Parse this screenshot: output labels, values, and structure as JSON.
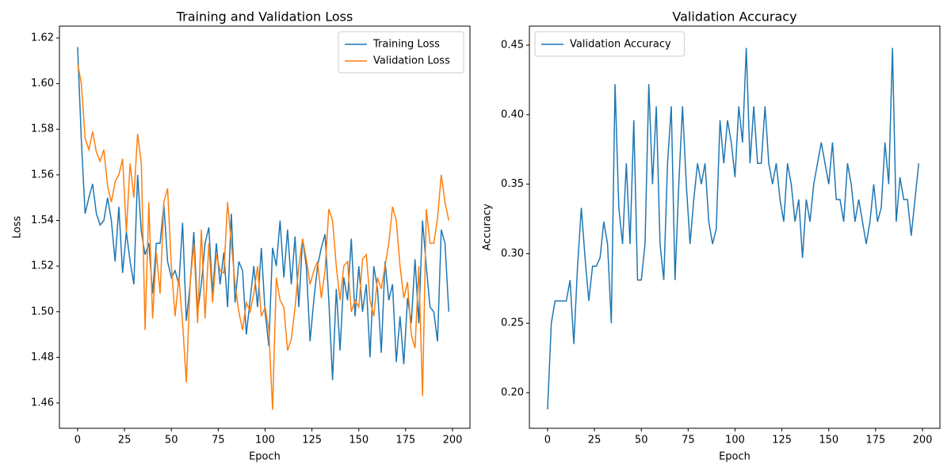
{
  "chart_data": [
    {
      "type": "line",
      "title": "Training and Validation Loss",
      "xlabel": "Epoch",
      "ylabel": "Loss",
      "x": [
        0,
        2,
        4,
        6,
        8,
        10,
        12,
        14,
        16,
        18,
        20,
        22,
        24,
        26,
        28,
        30,
        32,
        34,
        36,
        38,
        40,
        42,
        44,
        46,
        48,
        50,
        52,
        54,
        56,
        58,
        60,
        62,
        64,
        66,
        68,
        70,
        72,
        74,
        76,
        78,
        80,
        82,
        84,
        86,
        88,
        90,
        92,
        94,
        96,
        98,
        100,
        102,
        104,
        106,
        108,
        110,
        112,
        114,
        116,
        118,
        120,
        122,
        124,
        126,
        128,
        130,
        132,
        134,
        136,
        138,
        140,
        142,
        144,
        146,
        148,
        150,
        152,
        154,
        156,
        158,
        160,
        162,
        164,
        166,
        168,
        170,
        172,
        174,
        176,
        178,
        180,
        182,
        184,
        186,
        188,
        190,
        192,
        194,
        196,
        198
      ],
      "series": [
        {
          "name": "Training Loss",
          "color": "#1f77b4",
          "values": [
            1.616,
            1.575,
            1.543,
            1.55,
            1.556,
            1.543,
            1.538,
            1.54,
            1.55,
            1.54,
            1.522,
            1.546,
            1.517,
            1.535,
            1.522,
            1.512,
            1.56,
            1.535,
            1.525,
            1.53,
            1.508,
            1.53,
            1.53,
            1.547,
            1.522,
            1.515,
            1.518,
            1.512,
            1.539,
            1.496,
            1.512,
            1.535,
            1.5,
            1.512,
            1.53,
            1.537,
            1.508,
            1.53,
            1.512,
            1.526,
            1.502,
            1.543,
            1.504,
            1.522,
            1.518,
            1.49,
            1.505,
            1.52,
            1.502,
            1.528,
            1.5,
            1.485,
            1.528,
            1.52,
            1.54,
            1.515,
            1.536,
            1.512,
            1.533,
            1.502,
            1.532,
            1.52,
            1.487,
            1.505,
            1.52,
            1.528,
            1.534,
            1.505,
            1.47,
            1.51,
            1.483,
            1.515,
            1.505,
            1.532,
            1.498,
            1.52,
            1.5,
            1.512,
            1.48,
            1.52,
            1.51,
            1.482,
            1.522,
            1.505,
            1.512,
            1.478,
            1.498,
            1.477,
            1.506,
            1.495,
            1.523,
            1.495,
            1.54,
            1.52,
            1.502,
            1.5,
            1.487,
            1.536,
            1.53,
            1.5
          ]
        },
        {
          "name": "Validation Loss",
          "color": "#ff7f0e",
          "values": [
            1.609,
            1.6,
            1.576,
            1.571,
            1.579,
            1.57,
            1.566,
            1.571,
            1.555,
            1.548,
            1.557,
            1.56,
            1.567,
            1.535,
            1.565,
            1.55,
            1.578,
            1.565,
            1.492,
            1.548,
            1.497,
            1.526,
            1.508,
            1.548,
            1.554,
            1.52,
            1.498,
            1.515,
            1.495,
            1.469,
            1.512,
            1.53,
            1.495,
            1.536,
            1.497,
            1.53,
            1.504,
            1.525,
            1.518,
            1.517,
            1.548,
            1.53,
            1.512,
            1.5,
            1.492,
            1.504,
            1.5,
            1.508,
            1.52,
            1.498,
            1.502,
            1.492,
            1.457,
            1.515,
            1.505,
            1.502,
            1.483,
            1.488,
            1.502,
            1.52,
            1.532,
            1.523,
            1.512,
            1.518,
            1.522,
            1.506,
            1.518,
            1.545,
            1.54,
            1.52,
            1.505,
            1.52,
            1.522,
            1.5,
            1.505,
            1.502,
            1.523,
            1.525,
            1.505,
            1.498,
            1.515,
            1.51,
            1.52,
            1.53,
            1.546,
            1.54,
            1.52,
            1.506,
            1.513,
            1.49,
            1.484,
            1.52,
            1.463,
            1.545,
            1.53,
            1.53,
            1.541,
            1.56,
            1.548,
            1.54
          ]
        }
      ],
      "xlim": [
        -9.7,
        209.3
      ],
      "ylim": [
        1.4489,
        1.6252
      ],
      "xticks": [
        0,
        25,
        50,
        75,
        100,
        125,
        150,
        175,
        200
      ],
      "yticks": [
        1.46,
        1.48,
        {
          "value": 1.5,
          "label": "1.50"
        },
        1.52,
        1.54,
        1.56,
        1.58,
        {
          "value": 1.6,
          "label": "1.60"
        },
        1.62
      ],
      "legend": "upper right"
    },
    {
      "type": "line",
      "title": "Validation Accuracy",
      "xlabel": "Epoch",
      "ylabel": "Accuracy",
      "x": [
        0,
        2,
        4,
        6,
        8,
        10,
        12,
        14,
        16,
        18,
        20,
        22,
        24,
        26,
        28,
        30,
        32,
        34,
        36,
        38,
        40,
        42,
        44,
        46,
        48,
        50,
        52,
        54,
        56,
        58,
        60,
        62,
        64,
        66,
        68,
        70,
        72,
        74,
        76,
        78,
        80,
        82,
        84,
        86,
        88,
        90,
        92,
        94,
        96,
        98,
        100,
        102,
        104,
        106,
        108,
        110,
        112,
        114,
        116,
        118,
        120,
        122,
        124,
        126,
        128,
        130,
        132,
        134,
        136,
        138,
        140,
        142,
        144,
        146,
        148,
        150,
        152,
        154,
        156,
        158,
        160,
        162,
        164,
        166,
        168,
        170,
        172,
        174,
        176,
        178,
        180,
        182,
        184,
        186,
        188,
        190,
        192,
        194,
        196,
        198
      ],
      "series": [
        {
          "name": "Validation Accuracy",
          "color": "#1f77b4",
          "values": [
            0.188,
            0.25,
            0.266,
            0.266,
            0.266,
            0.266,
            0.281,
            0.235,
            0.291,
            0.333,
            0.297,
            0.266,
            0.291,
            0.291,
            0.297,
            0.323,
            0.307,
            0.25,
            0.422,
            0.333,
            0.307,
            0.365,
            0.307,
            0.396,
            0.281,
            0.281,
            0.307,
            0.422,
            0.35,
            0.406,
            0.307,
            0.281,
            0.365,
            0.406,
            0.281,
            0.35,
            0.406,
            0.35,
            0.307,
            0.339,
            0.365,
            0.35,
            0.365,
            0.323,
            0.307,
            0.318,
            0.396,
            0.365,
            0.396,
            0.38,
            0.355,
            0.406,
            0.38,
            0.448,
            0.365,
            0.406,
            0.365,
            0.365,
            0.406,
            0.365,
            0.35,
            0.365,
            0.339,
            0.323,
            0.365,
            0.35,
            0.323,
            0.339,
            0.297,
            0.339,
            0.323,
            0.35,
            0.365,
            0.38,
            0.365,
            0.35,
            0.38,
            0.339,
            0.339,
            0.323,
            0.365,
            0.35,
            0.323,
            0.339,
            0.323,
            0.307,
            0.323,
            0.35,
            0.323,
            0.333,
            0.38,
            0.35,
            0.448,
            0.323,
            0.355,
            0.339,
            0.339,
            0.313,
            0.339,
            0.365
          ]
        }
      ],
      "xlim": [
        -9.7,
        209.3
      ],
      "ylim": [
        0.1744,
        0.4637
      ],
      "xticks": [
        0,
        25,
        50,
        75,
        100,
        125,
        150,
        175,
        200
      ],
      "yticks": [
        {
          "value": 0.2,
          "label": "0.20"
        },
        0.25,
        {
          "value": 0.3,
          "label": "0.30"
        },
        0.35,
        {
          "value": 0.4,
          "label": "0.40"
        },
        0.45
      ],
      "legend": "upper left"
    }
  ]
}
